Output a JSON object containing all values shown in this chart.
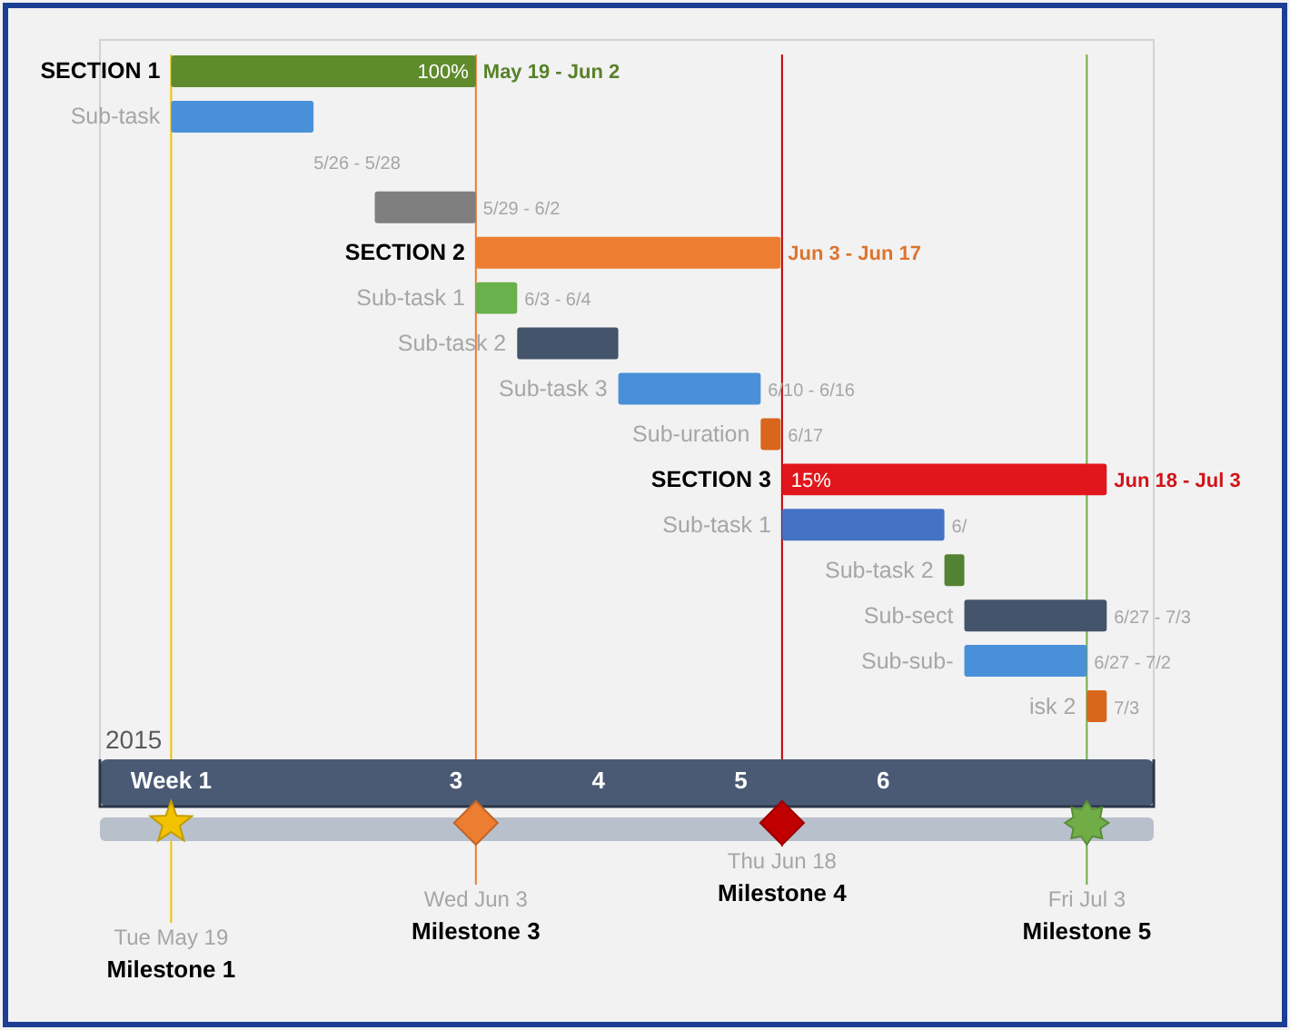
{
  "chart_data": {
    "type": "bar",
    "orientation": "horizontal",
    "categories": [
      "SECTION 1",
      "Sub-task",
      null,
      null,
      "SECTION 2",
      "Sub-task 1",
      "Sub-task 2",
      "Sub-task 3",
      "Sub-uration",
      "SECTION 3",
      "Sub-task 1",
      "Sub-task 2",
      "Sub-sect",
      "Sub-sub-",
      "isk 2"
    ],
    "base": [
      1,
      1,
      null,
      2.43,
      3.14,
      3.14,
      3.43,
      4.14,
      5.14,
      5.29,
      5.29,
      6.43,
      6.57,
      6.57,
      7.43
    ],
    "values": [
      2.14,
      1,
      null,
      0.71,
      2.14,
      0.29,
      0.71,
      1,
      0.14,
      2.28,
      1.14,
      0.14,
      1,
      0.86,
      0.14
    ],
    "colors": [
      "#5f8b2c",
      "#4a90d9",
      null,
      "#7f7f7f",
      "#ed7d31",
      "#6ab04c",
      "#44546a",
      "#4a90d9",
      "#d9661a",
      "#e0161c",
      "#4472c4",
      "#548235",
      "#44546a",
      "#4a90d9",
      "#d9661a"
    ],
    "xlim": [
      0.5,
      7.9
    ],
    "xticks": [
      {
        "value": 1,
        "label": "Week 1"
      },
      3,
      4,
      5,
      6
    ],
    "ref_lines": [
      {
        "axis": "x",
        "value": 1,
        "label": "Milestone 1",
        "color": "#f2c200"
      },
      {
        "axis": "x",
        "value": 3.14,
        "label": "Milestone 3",
        "color": "#ed7d31"
      },
      {
        "axis": "x",
        "value": 5.29,
        "label": "Milestone 4",
        "color": "#c00000"
      },
      {
        "axis": "x",
        "value": 7.43,
        "label": "Milestone 5",
        "color": "#70ad47"
      }
    ],
    "annotations": [
      "2015",
      "Tue May 19",
      "Wed Jun 3",
      "Thu Jun 18",
      "Fri Jul 3",
      "5/26 - 5/28",
      {
        "text": "100%",
        "x": 3.14,
        "y": "SECTION 1"
      },
      {
        "text": "May 19 - Jun 2",
        "x": 3.14,
        "y": "SECTION 1"
      },
      {
        "text": "5/29 - 6/2",
        "x": 3.14
      },
      {
        "text": "Jun 3 - Jun 17",
        "x": 5.28,
        "y": "SECTION 2"
      },
      {
        "text": "6/3 - 6/4",
        "x": 3.43,
        "y": "Sub-task 1"
      },
      {
        "text": "6/10 - 6/16",
        "x": 5.14,
        "y": "Sub-task 3"
      },
      {
        "text": "6/17",
        "x": 5.28,
        "y": "Sub-uration"
      },
      {
        "text": "15%",
        "x": 5.29,
        "y": "SECTION 3"
      },
      {
        "text": "Jun 18 - Jul 3",
        "x": 7.57,
        "y": "SECTION 3"
      },
      {
        "text": "6/",
        "x": 6.43
      },
      {
        "text": "6/27 - 7/3",
        "x": 7.57,
        "y": "Sub-sect"
      },
      {
        "text": "6/27 - 7/2",
        "x": 7.43,
        "y": "Sub-sub-"
      },
      {
        "text": "7/3",
        "x": 7.57,
        "y": "isk 2"
      }
    ]
  }
}
